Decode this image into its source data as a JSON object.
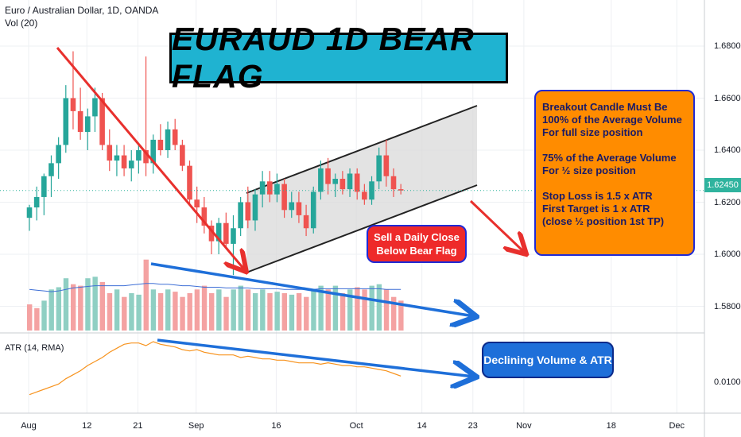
{
  "header": {
    "symbol_line": "Euro / Australian Dollar, 1D, OANDA",
    "volume_indicator": "Vol (20)",
    "atr_indicator": "ATR (14, RMA)"
  },
  "banner": {
    "text": "EURAUD 1D BEAR FLAG"
  },
  "info_box": {
    "lines": [
      "Breakout Candle Must Be",
      "100% of the Average Volume",
      "For full size position",
      "",
      "75% of the Average Volume",
      "For ½ size position",
      "",
      "Stop Loss is 1.5 x ATR",
      "First Target is 1 x ATR",
      "(close ½ position 1st TP)"
    ]
  },
  "sell_box": {
    "line1": "Sell a Daily Close",
    "line2": "Below Bear Flag"
  },
  "decl_box": {
    "text": "Declining Volume & ATR"
  },
  "price_tag": "1.62450",
  "colors": {
    "up": "#26a69a",
    "down": "#ef5350",
    "vol_up": "#8fcfc3",
    "vol_down": "#f4a2a2",
    "vol_ma": "#3e6fd6",
    "atr": "#f7931e",
    "annotation_red": "#e8302d",
    "annotation_blue": "#1e6fd9"
  },
  "chart_data": {
    "type": "candlestick",
    "price_axis": {
      "ticks": [
        "1.68000",
        "1.66000",
        "1.64000",
        "1.62000",
        "1.60000",
        "1.58000"
      ],
      "range": [
        1.57,
        1.69
      ],
      "last": 1.6245
    },
    "atr_axis": {
      "ticks": [
        "0.01000"
      ]
    },
    "x_ticks": [
      {
        "label": "Aug",
        "bar": 0
      },
      {
        "label": "12",
        "bar": 8
      },
      {
        "label": "21",
        "bar": 15
      },
      {
        "label": "Sep",
        "bar": 23
      },
      {
        "label": "16",
        "bar": 34
      },
      {
        "label": "Oct",
        "bar": 45
      },
      {
        "label": "14",
        "bar": 54
      },
      {
        "label": "23",
        "bar": 61
      },
      {
        "label": "Nov",
        "bar": 68
      },
      {
        "label": "18",
        "bar": 80
      },
      {
        "label": "Dec",
        "bar": 89
      }
    ],
    "candles": [
      [
        1.614,
        1.619,
        1.609,
        1.618
      ],
      [
        1.618,
        1.626,
        1.613,
        1.622
      ],
      [
        1.622,
        1.631,
        1.615,
        1.63
      ],
      [
        1.63,
        1.638,
        1.622,
        1.635
      ],
      [
        1.635,
        1.645,
        1.629,
        1.642
      ],
      [
        1.642,
        1.665,
        1.639,
        1.66
      ],
      [
        1.66,
        1.678,
        1.648,
        1.655
      ],
      [
        1.655,
        1.664,
        1.644,
        1.647
      ],
      [
        1.647,
        1.656,
        1.64,
        1.653
      ],
      [
        1.653,
        1.664,
        1.647,
        1.66
      ],
      [
        1.66,
        1.662,
        1.64,
        1.642
      ],
      [
        1.642,
        1.648,
        1.632,
        1.636
      ],
      [
        1.636,
        1.642,
        1.63,
        1.638
      ],
      [
        1.638,
        1.642,
        1.63,
        1.633
      ],
      [
        1.633,
        1.64,
        1.628,
        1.636
      ],
      [
        1.636,
        1.642,
        1.631,
        1.64
      ],
      [
        1.64,
        1.676,
        1.63,
        1.635
      ],
      [
        1.635,
        1.646,
        1.631,
        1.644
      ],
      [
        1.644,
        1.65,
        1.638,
        1.64
      ],
      [
        1.64,
        1.651,
        1.637,
        1.648
      ],
      [
        1.648,
        1.652,
        1.64,
        1.642
      ],
      [
        1.642,
        1.644,
        1.632,
        1.634
      ],
      [
        1.634,
        1.636,
        1.619,
        1.621
      ],
      [
        1.621,
        1.626,
        1.612,
        1.618
      ],
      [
        1.618,
        1.622,
        1.608,
        1.611
      ],
      [
        1.611,
        1.613,
        1.6,
        1.605
      ],
      [
        1.605,
        1.614,
        1.6,
        1.612
      ],
      [
        1.612,
        1.616,
        1.602,
        1.604
      ],
      [
        1.604,
        1.615,
        1.592,
        1.61
      ],
      [
        1.61,
        1.622,
        1.607,
        1.62
      ],
      [
        1.62,
        1.626,
        1.61,
        1.613
      ],
      [
        1.613,
        1.625,
        1.609,
        1.623
      ],
      [
        1.623,
        1.632,
        1.618,
        1.628
      ],
      [
        1.628,
        1.632,
        1.62,
        1.623
      ],
      [
        1.623,
        1.631,
        1.62,
        1.627
      ],
      [
        1.627,
        1.629,
        1.614,
        1.617
      ],
      [
        1.617,
        1.624,
        1.614,
        1.62
      ],
      [
        1.62,
        1.624,
        1.612,
        1.615
      ],
      [
        1.615,
        1.619,
        1.607,
        1.61
      ],
      [
        1.61,
        1.626,
        1.608,
        1.624
      ],
      [
        1.624,
        1.636,
        1.621,
        1.633
      ],
      [
        1.633,
        1.637,
        1.623,
        1.627
      ],
      [
        1.627,
        1.631,
        1.622,
        1.629
      ],
      [
        1.629,
        1.632,
        1.623,
        1.625
      ],
      [
        1.625,
        1.633,
        1.622,
        1.631
      ],
      [
        1.631,
        1.633,
        1.621,
        1.624
      ],
      [
        1.624,
        1.627,
        1.619,
        1.621
      ],
      [
        1.621,
        1.63,
        1.619,
        1.628
      ],
      [
        1.628,
        1.641,
        1.625,
        1.638
      ],
      [
        1.638,
        1.644,
        1.626,
        1.63
      ],
      [
        1.63,
        1.633,
        1.622,
        1.625
      ],
      [
        1.625,
        1.627,
        1.623,
        1.6245
      ]
    ],
    "volume": [
      [
        0.35,
        -1
      ],
      [
        0.3,
        -1
      ],
      [
        0.4,
        1
      ],
      [
        0.55,
        1
      ],
      [
        0.58,
        1
      ],
      [
        0.7,
        1
      ],
      [
        0.62,
        -1
      ],
      [
        0.6,
        -1
      ],
      [
        0.7,
        1
      ],
      [
        0.72,
        1
      ],
      [
        0.65,
        -1
      ],
      [
        0.5,
        -1
      ],
      [
        0.55,
        1
      ],
      [
        0.45,
        -1
      ],
      [
        0.5,
        1
      ],
      [
        0.48,
        1
      ],
      [
        0.95,
        -1
      ],
      [
        0.55,
        1
      ],
      [
        0.5,
        -1
      ],
      [
        0.55,
        1
      ],
      [
        0.52,
        -1
      ],
      [
        0.45,
        -1
      ],
      [
        0.5,
        -1
      ],
      [
        0.55,
        -1
      ],
      [
        0.6,
        -1
      ],
      [
        0.5,
        -1
      ],
      [
        0.55,
        1
      ],
      [
        0.45,
        -1
      ],
      [
        0.55,
        1
      ],
      [
        0.6,
        1
      ],
      [
        0.55,
        -1
      ],
      [
        0.5,
        1
      ],
      [
        0.55,
        1
      ],
      [
        0.5,
        -1
      ],
      [
        0.52,
        1
      ],
      [
        0.5,
        -1
      ],
      [
        0.48,
        1
      ],
      [
        0.5,
        -1
      ],
      [
        0.45,
        -1
      ],
      [
        0.55,
        1
      ],
      [
        0.6,
        1
      ],
      [
        0.55,
        -1
      ],
      [
        0.6,
        1
      ],
      [
        0.5,
        -1
      ],
      [
        0.55,
        1
      ],
      [
        0.58,
        -1
      ],
      [
        0.55,
        -1
      ],
      [
        0.6,
        1
      ],
      [
        0.62,
        1
      ],
      [
        0.55,
        -1
      ],
      [
        0.45,
        -1
      ],
      [
        0.4,
        -1
      ]
    ],
    "volume_ma": [
      0.55,
      0.54,
      0.53,
      0.52,
      0.53,
      0.55,
      0.57,
      0.58,
      0.59,
      0.6,
      0.6,
      0.6,
      0.6,
      0.6,
      0.61,
      0.62,
      0.63,
      0.63,
      0.62,
      0.62,
      0.61,
      0.6,
      0.6,
      0.59,
      0.58,
      0.58,
      0.58,
      0.57,
      0.57,
      0.57,
      0.57,
      0.56,
      0.56,
      0.56,
      0.56,
      0.55,
      0.55,
      0.55,
      0.55,
      0.55,
      0.56,
      0.56,
      0.56,
      0.56,
      0.56,
      0.56,
      0.56,
      0.56,
      0.56,
      0.55,
      0.55,
      0.55
    ],
    "atr": [
      0.0082,
      0.0084,
      0.0086,
      0.0088,
      0.009,
      0.0094,
      0.0097,
      0.01,
      0.0104,
      0.0107,
      0.011,
      0.0114,
      0.0117,
      0.012,
      0.0121,
      0.0121,
      0.0119,
      0.0122,
      0.012,
      0.0119,
      0.0118,
      0.0116,
      0.0115,
      0.0116,
      0.0114,
      0.0113,
      0.0112,
      0.0112,
      0.0112,
      0.011,
      0.0111,
      0.011,
      0.0109,
      0.0109,
      0.0108,
      0.0108,
      0.0107,
      0.0106,
      0.0106,
      0.0106,
      0.0105,
      0.0106,
      0.0105,
      0.0104,
      0.0104,
      0.0103,
      0.0103,
      0.0102,
      0.0101,
      0.01,
      0.0098,
      0.0096
    ]
  }
}
